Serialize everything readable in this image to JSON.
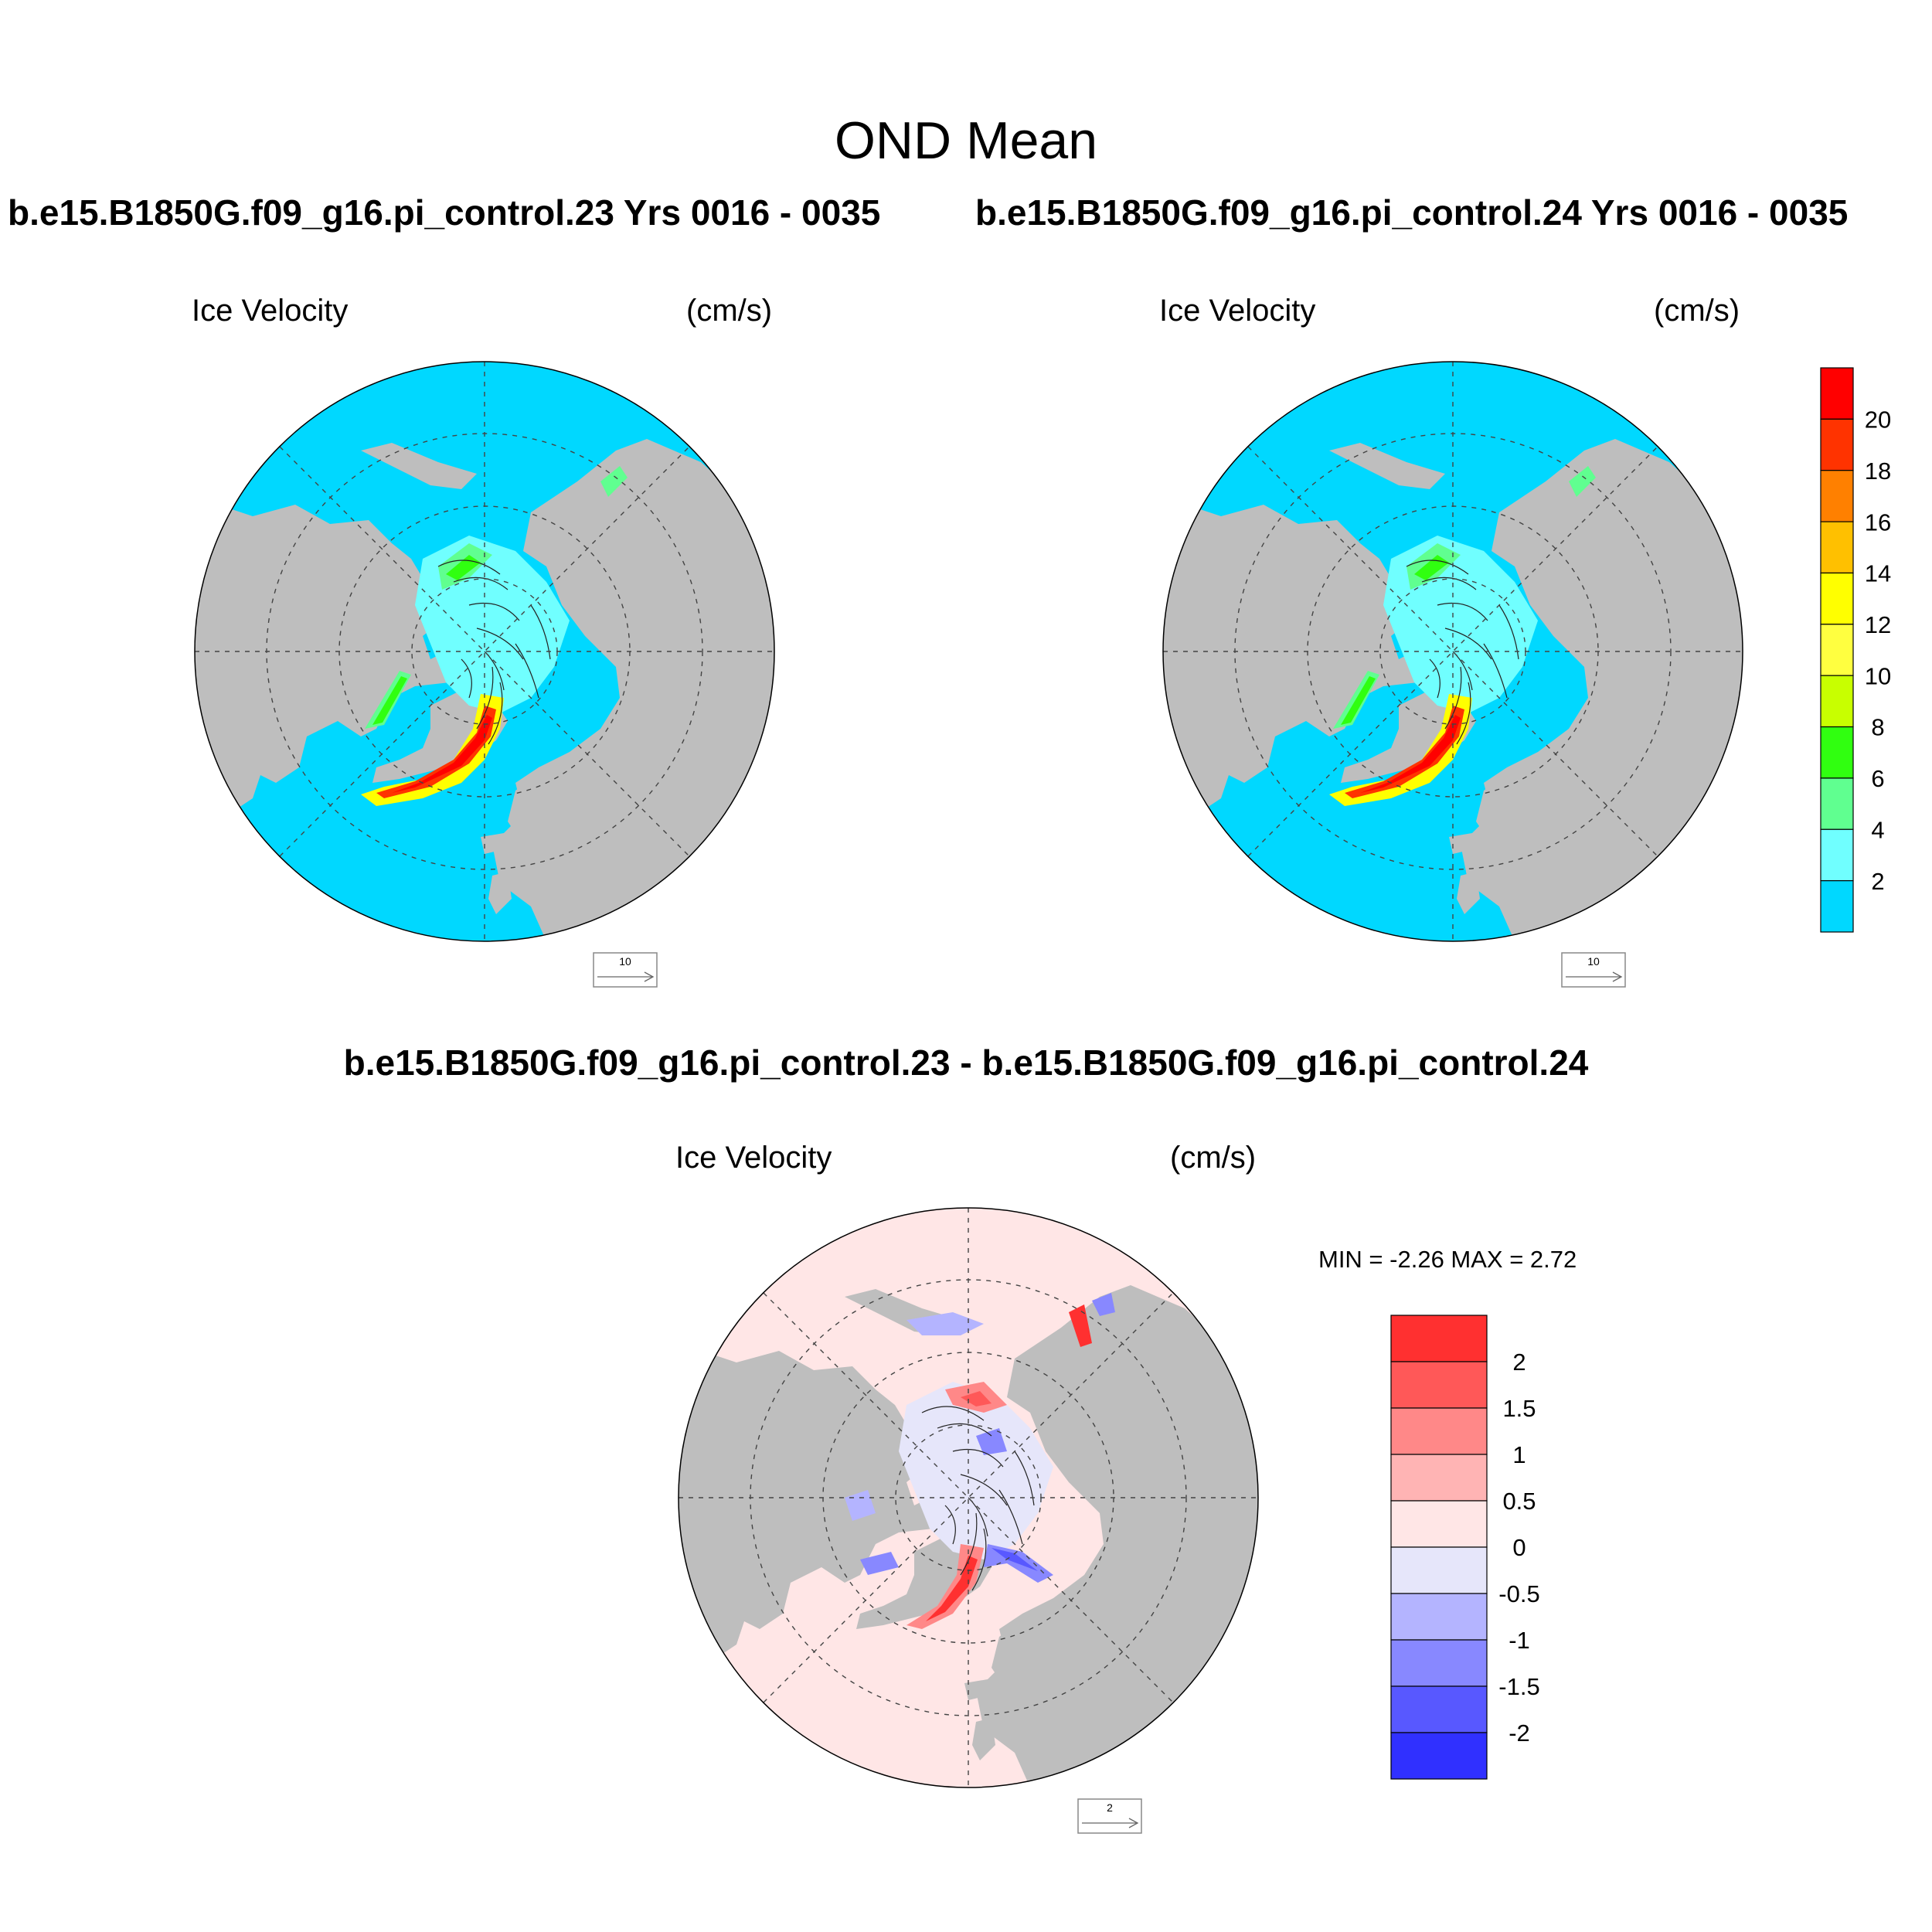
{
  "figure": {
    "title": "OND Mean",
    "panels": {
      "left": {
        "case": "b.e15.B1850G.f09_g16.pi_control.23  Yrs 0016 - 0035",
        "variable": "Ice Velocity",
        "units": "(cm/s)",
        "reference_vector": "10"
      },
      "right": {
        "case": "b.e15.B1850G.f09_g16.pi_control.24  Yrs 0016 - 0035",
        "variable": "Ice Velocity",
        "units": "(cm/s)",
        "reference_vector": "10"
      },
      "diff": {
        "case": "b.e15.B1850G.f09_g16.pi_control.23 - b.e15.B1850G.f09_g16.pi_control.24",
        "variable": "Ice Velocity",
        "units": "(cm/s)",
        "reference_vector": "2",
        "min_max": "MIN =  -2.26 MAX =   2.72"
      }
    },
    "colorbar_mean": {
      "labels": [
        "20",
        "18",
        "16",
        "14",
        "12",
        "10",
        "8",
        "6",
        "4",
        "2"
      ],
      "colors": [
        "#ff0000",
        "#ff3300",
        "#ff8000",
        "#ffc000",
        "#ffff00",
        "#ffff40",
        "#c8ff00",
        "#30ff10",
        "#60ff90",
        "#70ffff",
        "#00d8ff"
      ]
    },
    "colorbar_diff": {
      "labels": [
        "2",
        "1.5",
        "1",
        "0.5",
        "0",
        "-0.5",
        "-1",
        "-1.5",
        "-2"
      ],
      "colors": [
        "#ff3030",
        "#ff5858",
        "#ff8888",
        "#ffb4b4",
        "#ffe6e6",
        "#e6e6fa",
        "#b4b4ff",
        "#8888ff",
        "#5858ff",
        "#3030ff"
      ]
    },
    "map_colors": {
      "land": "#bebebe",
      "ocean_mean": "#00d8ff",
      "ocean_diff": "#ffe6e6",
      "ice_free": "#ffffff"
    }
  }
}
